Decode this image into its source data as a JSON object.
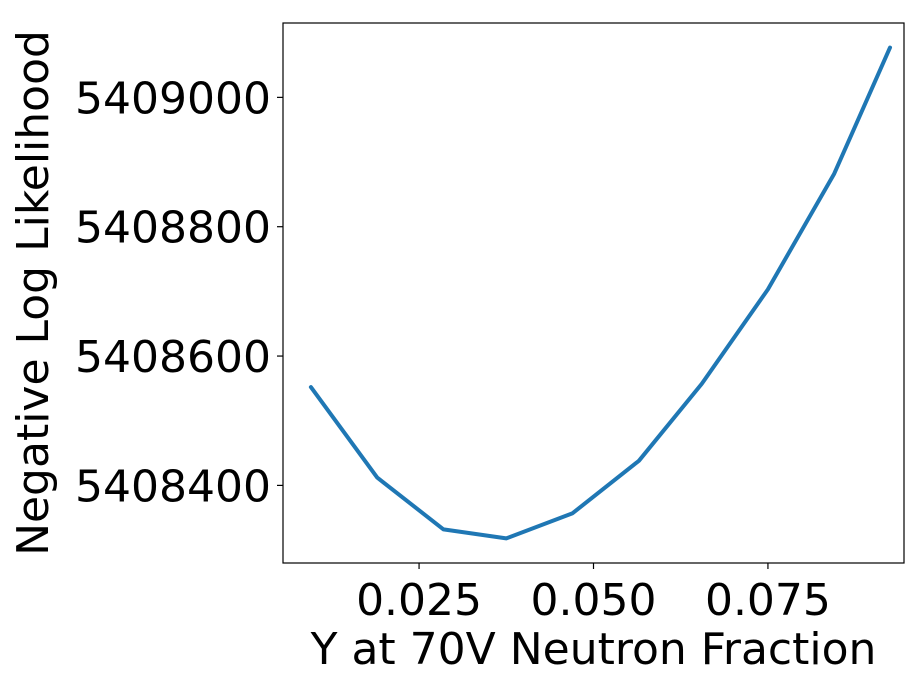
{
  "chart_data": {
    "type": "line",
    "title": "",
    "xlabel": "Y at 70V Neutron Fraction",
    "ylabel": "Negative Log Likelihood",
    "xlim": [
      0.0055,
      0.0945
    ],
    "ylim": [
      5408280,
      5409115
    ],
    "xticks": [
      0.025,
      0.05,
      0.075
    ],
    "xtick_labels": [
      "0.025",
      "0.050",
      "0.075"
    ],
    "yticks": [
      5408400,
      5408600,
      5408800,
      5409000
    ],
    "ytick_labels": [
      "5408400",
      "5408600",
      "5408800",
      "5409000"
    ],
    "grid": false,
    "legend": "none",
    "series": [
      {
        "color": "#1f77b4",
        "x": [
          0.0095,
          0.019,
          0.0285,
          0.0375,
          0.047,
          0.0565,
          0.0655,
          0.075,
          0.0845,
          0.0925
        ],
        "y": [
          5408552,
          5408412,
          5408332,
          5408318,
          5408357,
          5408438,
          5408557,
          5408703,
          5408882,
          5409077
        ]
      }
    ]
  }
}
